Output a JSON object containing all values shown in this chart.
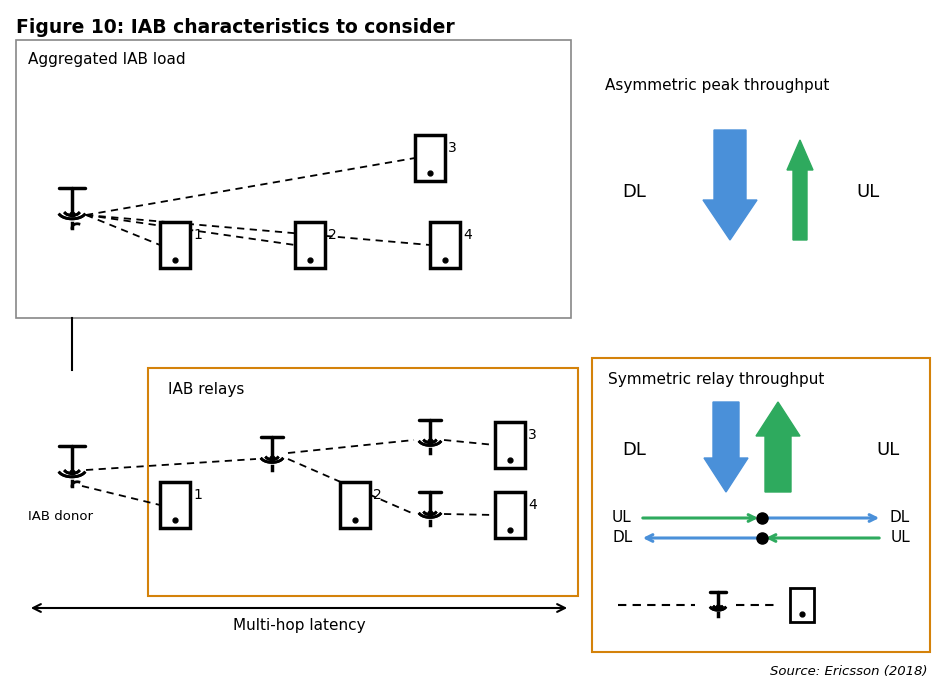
{
  "title": "Figure 10: IAB characteristics to consider",
  "source": "Source: Ericsson (2018)",
  "top_box_label": "Aggregated IAB load",
  "bottom_relay_label": "IAB relays",
  "bottom_latency_label": "Multi-hop latency",
  "donor_label": "IAB donor",
  "asym_title": "Asymmetric peak throughput",
  "sym_title": "Symmetric relay throughput",
  "blue_color": "#4A90D9",
  "green_color": "#2EAA5E",
  "orange_color": "#D4820A",
  "bg_color": "#FFFFFF",
  "fig_w": 9.44,
  "fig_h": 6.94,
  "dpi": 100
}
